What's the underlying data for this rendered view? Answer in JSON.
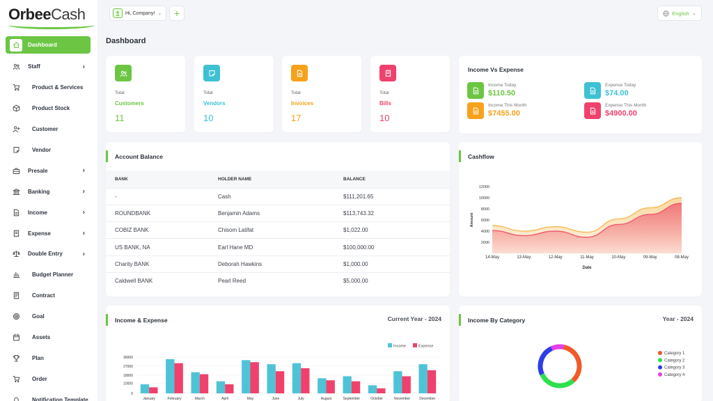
{
  "logo": {
    "part1": "Orbee",
    "part2": "Cash"
  },
  "topbar": {
    "company": "Hi, Company!",
    "language": "English"
  },
  "sidebar": {
    "items": [
      {
        "label": "Dashboard",
        "icon": "home-icon",
        "active": true,
        "caret": false
      },
      {
        "label": "Staff",
        "icon": "users-icon",
        "caret": true
      },
      {
        "label": "Product & Services",
        "icon": "cart-icon",
        "caret": false
      },
      {
        "label": "Product Stock",
        "icon": "box-icon",
        "caret": false
      },
      {
        "label": "Customer",
        "icon": "user-plus-icon",
        "caret": false
      },
      {
        "label": "Vendor",
        "icon": "note-icon",
        "caret": false
      },
      {
        "label": "Presale",
        "icon": "briefcase-icon",
        "caret": true
      },
      {
        "label": "Banking",
        "icon": "bank-icon",
        "caret": true
      },
      {
        "label": "Income",
        "icon": "file-icon",
        "caret": true
      },
      {
        "label": "Expense",
        "icon": "receipt-icon",
        "caret": true
      },
      {
        "label": "Double Entry",
        "icon": "scale-icon",
        "caret": true
      },
      {
        "label": "Budget Planner",
        "icon": "chart-icon",
        "caret": false
      },
      {
        "label": "Contract",
        "icon": "contract-icon",
        "caret": false
      },
      {
        "label": "Goal",
        "icon": "target-icon",
        "caret": false
      },
      {
        "label": "Assets",
        "icon": "calendar-icon",
        "caret": false
      },
      {
        "label": "Plan",
        "icon": "trophy-icon",
        "caret": false
      },
      {
        "label": "Order",
        "icon": "order-icon",
        "caret": false
      },
      {
        "label": "Notification Template",
        "icon": "bell-icon",
        "caret": false
      }
    ]
  },
  "page_title": "Dashboard",
  "stats": [
    {
      "total": "Total",
      "name": "Customers",
      "value": "11",
      "color": "#6cc644",
      "icon": "users-icon"
    },
    {
      "total": "Total",
      "name": "Vendors",
      "value": "10",
      "color": "#3ec1d3",
      "icon": "note-icon"
    },
    {
      "total": "Total",
      "name": "Invoices",
      "value": "17",
      "color": "#f7a21b",
      "icon": "file-icon"
    },
    {
      "total": "Total",
      "name": "Bills",
      "value": "10",
      "color": "#f0416c",
      "icon": "receipt-icon"
    }
  ],
  "income_vs_expense": {
    "title": "Income Vs Expense",
    "items": [
      {
        "label": "Income Today",
        "value": "$110.50",
        "color": "#6cc644"
      },
      {
        "label": "Expense Today",
        "value": "$74.00",
        "color": "#3ec1d3"
      },
      {
        "label": "Income This Month",
        "value": "$7455.00",
        "color": "#f7a21b"
      },
      {
        "label": "Expense This Month",
        "value": "$4900.00",
        "color": "#f0416c"
      }
    ]
  },
  "account_balance": {
    "title": "Account Balance",
    "columns": [
      "BANK",
      "HOLDER NAME",
      "BALANCE"
    ],
    "rows": [
      [
        "-",
        "Cash",
        "$111,201.65"
      ],
      [
        "ROUNDBANK",
        "Benjamin Adams",
        "$113,743.32"
      ],
      [
        "COBIZ BANK",
        "Chisom Latifat",
        "$1,022.00"
      ],
      [
        "US BANK, NA",
        "Earl Hane MD",
        "$100,000.00"
      ],
      [
        "Charity BANK",
        "Deborah Hawkins",
        "$1,000.00"
      ],
      [
        "Caldwell BANK",
        "Pearl Reed",
        "$5,000.00"
      ]
    ]
  },
  "cashflow": {
    "title": "Cashflow"
  },
  "income_expense": {
    "title": "Income & Expense",
    "period": "Current Year - 2024"
  },
  "income_by_category": {
    "title": "Income By Category",
    "period": "Year - 2024"
  },
  "chart_data": [
    {
      "type": "area",
      "xlabel": "Date",
      "ylabel": "Amount",
      "categories": [
        "14-May",
        "13-May",
        "12-May",
        "11-May",
        "10-May",
        "09-May",
        "08-May"
      ],
      "yticks": [
        2000,
        4000,
        6000,
        8000,
        10000,
        12000
      ],
      "ylim": [
        0,
        12000
      ],
      "series": [
        {
          "values": [
            5000,
            4000,
            4800,
            3800,
            6200,
            8200,
            10000
          ],
          "color": "#f7b955"
        },
        {
          "values": [
            4100,
            3200,
            4000,
            2900,
            5200,
            7000,
            9000
          ],
          "color": "#ee5a6f"
        }
      ]
    },
    {
      "type": "bar",
      "categories": [
        "January",
        "February",
        "March",
        "April",
        "May",
        "June",
        "July",
        "August",
        "September",
        "October",
        "November",
        "December"
      ],
      "yticks": [
        0,
        10000,
        18000,
        27000,
        36000
      ],
      "ylim": [
        0,
        36000
      ],
      "legend": "top-right",
      "series": [
        {
          "name": "Income",
          "values": [
            9000,
            34000,
            21000,
            12000,
            33000,
            29000,
            30000,
            15000,
            17000,
            8000,
            22000,
            29000
          ],
          "color": "#4fc3d6"
        },
        {
          "name": "Expense",
          "values": [
            6000,
            30000,
            19000,
            9000,
            31000,
            22000,
            25000,
            13000,
            12000,
            5000,
            17000,
            23000
          ],
          "color": "#f0416c"
        }
      ]
    },
    {
      "type": "pie",
      "legend": "right",
      "series": [
        {
          "name": "Category 1",
          "value": 35,
          "color": "#f05a28"
        },
        {
          "name": "Category 2",
          "value": 30,
          "color": "#2ee04c"
        },
        {
          "name": "Category 3",
          "value": 25,
          "color": "#2e3de8"
        },
        {
          "name": "Category 4",
          "value": 10,
          "color": "#e63fe8"
        }
      ]
    }
  ]
}
